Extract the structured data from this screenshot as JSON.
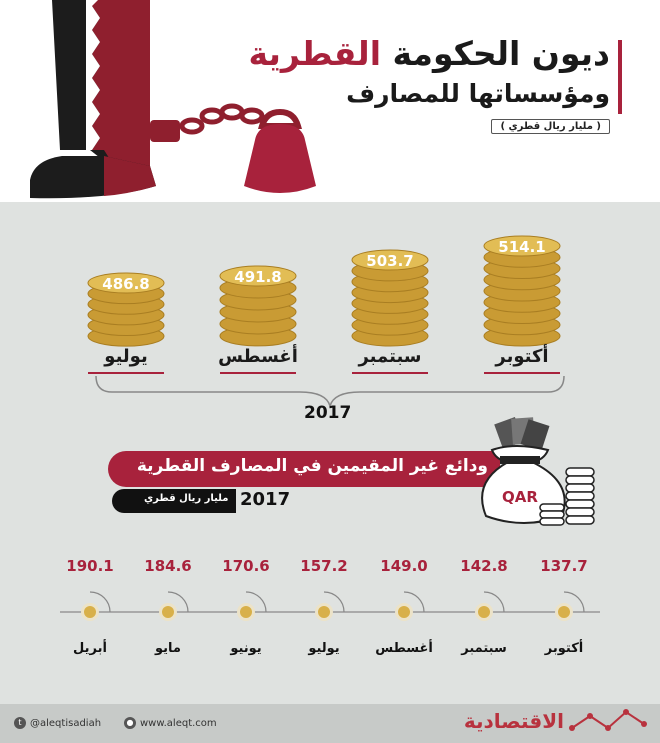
{
  "header": {
    "title_main": "ديون الحكومة ",
    "title_accent": "القطرية",
    "title_line2": "ومؤسساتها للمصارف",
    "unit": "( مليار ريال قطري )"
  },
  "colors": {
    "accent": "#a8223c",
    "coin": "#d8b04a",
    "background": "#dfe2e0"
  },
  "icons": [
    "shackled-leg-qatar-flag-icon",
    "money-bag-icon",
    "coin-stack-icon",
    "twitter-icon",
    "globe-icon"
  ],
  "chart_data": [
    {
      "type": "bar",
      "categories": [
        "أكتوبر",
        "سبتمبر",
        "أغسطس",
        "يوليو"
      ],
      "values": [
        514.1,
        503.7,
        491.8,
        486.8
      ],
      "value_labels": [
        "514.1",
        "503.7",
        "491.8",
        "486.8"
      ],
      "group_label": "2017"
    },
    {
      "type": "scatter",
      "title": "ودائع غير المقيمين في المصارف القطرية",
      "unit": "مليار ريال قطري",
      "year": "2017",
      "bag_label": "QAR",
      "categories": [
        "أكتوبر",
        "سبتمبر",
        "أغسطس",
        "يوليو",
        "يونيو",
        "مايو",
        "أبريل"
      ],
      "values": [
        137.7,
        142.8,
        149.0,
        157.2,
        170.6,
        184.6,
        190.1
      ],
      "value_labels": [
        "137.7",
        "142.8",
        "149.0",
        "157.2",
        "170.6",
        "184.6",
        "190.1"
      ]
    }
  ],
  "footer": {
    "twitter": "@aleqtisadiah",
    "website": "www.aleqt.com",
    "brand": "الاقتصادية"
  }
}
